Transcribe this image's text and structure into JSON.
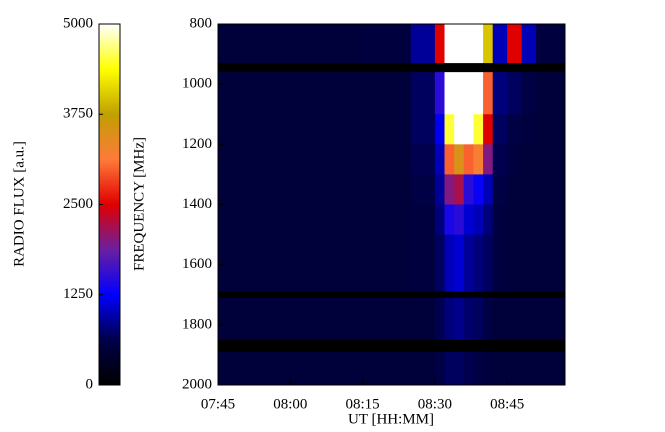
{
  "chart_data": {
    "type": "heatmap",
    "xlabel": "UT [HH:MM]",
    "ylabel": "FREQUENCY [MHz]",
    "colorbar_label": "RADIO FLUX [a.u.]",
    "x_edges": [
      465,
      495,
      505,
      510,
      512,
      514,
      516,
      518,
      520,
      522,
      525,
      528,
      531,
      537
    ],
    "y_edges": [
      800,
      930,
      960,
      1100,
      1200,
      1300,
      1400,
      1500,
      1690,
      1710,
      1850,
      1890,
      2000
    ],
    "z": [
      [
        500,
        550,
        900,
        2500,
        5000,
        5000,
        5000,
        5000,
        4000,
        1000,
        2500,
        1000,
        550
      ],
      [
        0,
        0,
        0,
        0,
        0,
        0,
        0,
        0,
        0,
        0,
        0,
        0,
        0
      ],
      [
        500,
        500,
        700,
        1500,
        5000,
        5000,
        5000,
        5000,
        3000,
        800,
        700,
        600,
        500
      ],
      [
        500,
        500,
        700,
        1200,
        4500,
        5000,
        5000,
        4500,
        2500,
        700,
        600,
        550,
        500
      ],
      [
        500,
        500,
        650,
        1000,
        3000,
        3500,
        3000,
        3200,
        2000,
        650,
        550,
        500,
        500
      ],
      [
        500,
        500,
        600,
        900,
        2000,
        2200,
        1500,
        1300,
        1000,
        600,
        500,
        500,
        500
      ],
      [
        500,
        500,
        550,
        800,
        1400,
        1500,
        1100,
        1000,
        800,
        550,
        500,
        500,
        500
      ],
      [
        500,
        500,
        550,
        700,
        1000,
        1100,
        900,
        800,
        700,
        550,
        500,
        500,
        500
      ],
      [
        0,
        0,
        0,
        0,
        0,
        0,
        0,
        0,
        0,
        0,
        0,
        0,
        0
      ],
      [
        500,
        500,
        500,
        650,
        800,
        850,
        750,
        700,
        600,
        500,
        500,
        500,
        500
      ],
      [
        0,
        0,
        0,
        0,
        0,
        0,
        0,
        0,
        0,
        0,
        0,
        0,
        0
      ],
      [
        500,
        500,
        500,
        600,
        700,
        700,
        650,
        600,
        550,
        500,
        500,
        500,
        500
      ]
    ],
    "xlim": [
      465,
      537
    ],
    "xticks": [
      {
        "value": 465,
        "label": "07:45"
      },
      {
        "value": 480,
        "label": "08:00"
      },
      {
        "value": 495,
        "label": "08:15"
      },
      {
        "value": 510,
        "label": "08:30"
      },
      {
        "value": 525,
        "label": "08:45"
      }
    ],
    "ylim": [
      800,
      2000
    ],
    "yticks": [
      800,
      1000,
      1200,
      1400,
      1600,
      1800,
      2000
    ],
    "zlim": [
      0,
      5000
    ],
    "zticks": [
      0,
      1250,
      2500,
      3750,
      5000
    ],
    "colormap": [
      "#000000",
      "#000048",
      "#0000ff",
      "#6a1fa0",
      "#e00000",
      "#ff7a3a",
      "#c0a000",
      "#ffff00",
      "#ffffff"
    ]
  }
}
